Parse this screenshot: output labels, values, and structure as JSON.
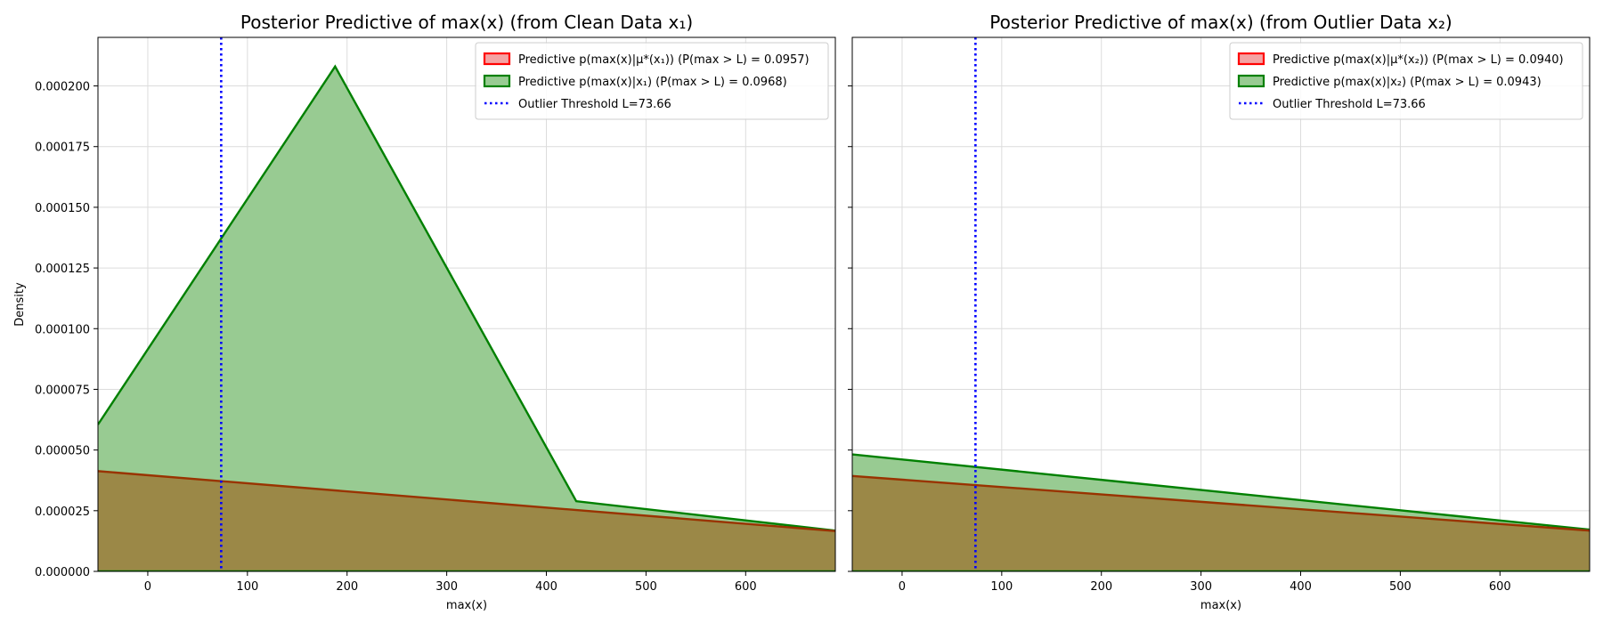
{
  "ylabel": "Density",
  "chart_data": [
    {
      "type": "area",
      "title": "Posterior Predictive of max(x) (from Clean Data x₁)",
      "xlabel": "max(x)",
      "ylabel": "Density",
      "xlim": [
        -50,
        690
      ],
      "ylim": [
        0,
        0.00022
      ],
      "xticks": [
        "0",
        "100",
        "200",
        "300",
        "400",
        "500",
        "600"
      ],
      "yticks": [
        "0.000000",
        "0.000025",
        "0.000050",
        "0.000075",
        "0.000100",
        "0.000125",
        "0.000150",
        "0.000175",
        "0.000200"
      ],
      "grid": true,
      "legend_position": "top-right",
      "threshold": {
        "name": "Outlier Threshold L=73.66",
        "x": 73.66
      },
      "series": [
        {
          "name": "Predictive p(max(x)|μ*(x₁)) (P(max > L) = 0.0957)",
          "color": "#d62728",
          "x": [
            -50,
            690
          ],
          "y": [
            4.13e-05,
            1.66e-05
          ]
        },
        {
          "name": "Predictive p(max(x)|x₁) (P(max > L) = 0.0968)",
          "color": "#008000",
          "x": [
            -50,
            188,
            430,
            690
          ],
          "y": [
            6.05e-05,
            0.000208,
            2.89e-05,
            1.68e-05
          ]
        }
      ]
    },
    {
      "type": "area",
      "title": "Posterior Predictive of max(x) (from Outlier Data x₂)",
      "xlabel": "max(x)",
      "ylabel": "",
      "xlim": [
        -50,
        690
      ],
      "ylim": [
        0,
        0.00022
      ],
      "xticks": [
        "0",
        "100",
        "200",
        "300",
        "400",
        "500",
        "600"
      ],
      "grid": true,
      "legend_position": "top-right",
      "threshold": {
        "name": "Outlier Threshold L=73.66",
        "x": 73.66
      },
      "series": [
        {
          "name": "Predictive p(max(x)|μ*(x₂)) (P(max > L) = 0.0940)",
          "color": "#d62728",
          "x": [
            -50,
            690
          ],
          "y": [
            3.93e-05,
            1.68e-05
          ]
        },
        {
          "name": "Predictive p(max(x)|x₂) (P(max > L) = 0.0943)",
          "color": "#008000",
          "x": [
            -50,
            690
          ],
          "y": [
            4.82e-05,
            1.72e-05
          ]
        }
      ]
    }
  ]
}
